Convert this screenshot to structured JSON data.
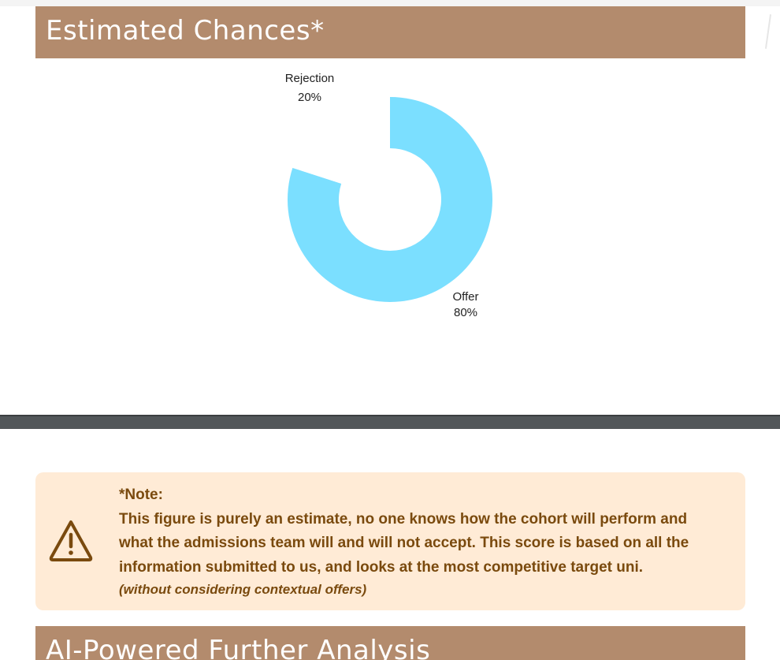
{
  "sections": {
    "estimated_chances": {
      "title": "Estimated Chances*"
    },
    "ai_analysis": {
      "title": "AI-Powered Further Analysis"
    }
  },
  "chart_data": {
    "type": "pie",
    "variant": "donut",
    "categories": [
      "Offer",
      "Rejection"
    ],
    "values": [
      80,
      20
    ],
    "value_labels": [
      "80%",
      "20%"
    ],
    "colors": [
      "#7bdfff",
      "#ffffff"
    ],
    "start_angle_deg": 0
  },
  "note": {
    "heading": "*Note:",
    "lines": [
      "This figure is purely an estimate, no one knows how the cohort will perform and",
      "what the admissions team will and will not accept. This score is based on all the",
      "information submitted to us, and looks at the most competitive target uni."
    ],
    "subtext": "(without considering contextual offers)",
    "icon": "warning-icon",
    "background": "#ffebd6",
    "text_color": "#7a4a0e"
  },
  "theme": {
    "header_color": "#b38b6d",
    "divider_color": "#525659"
  }
}
